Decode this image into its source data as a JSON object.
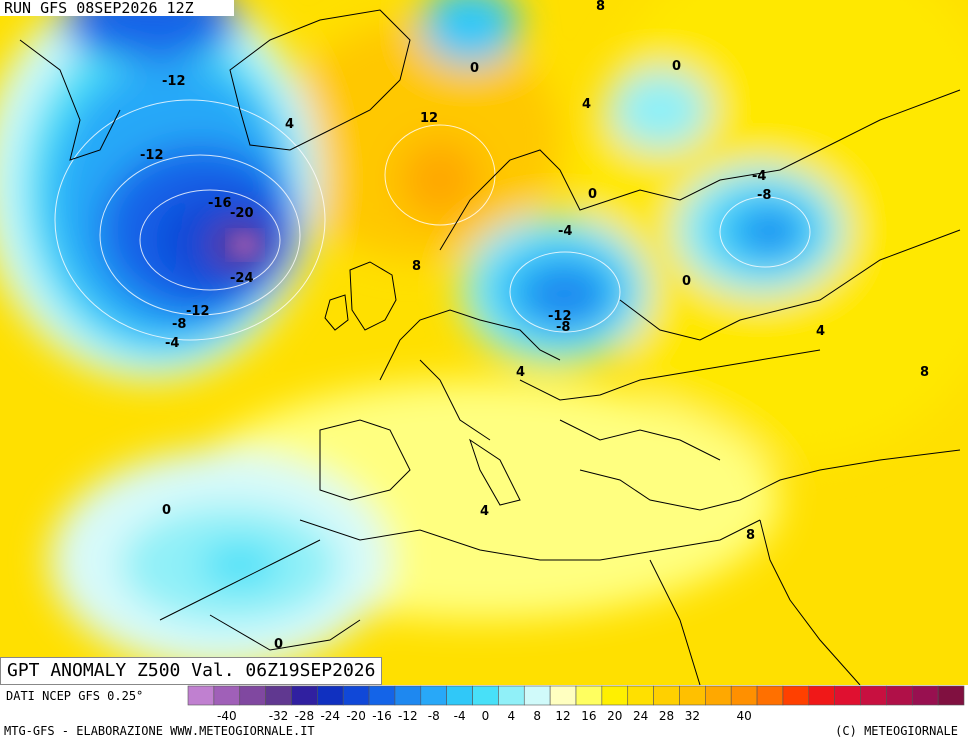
{
  "header": {
    "run": "RUN GFS 08SEP2026 12Z"
  },
  "title": "GPT ANOMALY Z500 Val. 06Z19SEP2026",
  "footer": {
    "source": "DATI NCEP GFS 0.25°",
    "credit_left": "MTG-GFS - ELABORAZIONE WWW.METEOGIORNALE.IT",
    "credit_right": "(C) METEOGIORNALE"
  },
  "legend": {
    "tick_labels": [
      "-40",
      "-32",
      "-28",
      "-24",
      "-20",
      "-16",
      "-12",
      "-8",
      "-4",
      "0",
      "4",
      "8",
      "12",
      "16",
      "20",
      "24",
      "28",
      "32",
      "40"
    ],
    "colors": [
      "#c080d0",
      "#a060b8",
      "#8048a0",
      "#603890",
      "#3020a0",
      "#1030c0",
      "#1048d8",
      "#1464e8",
      "#1e88f0",
      "#28a8f8",
      "#30c8f8",
      "#48e0f8",
      "#90f0f8",
      "#d0fafa",
      "#ffffc0",
      "#ffff60",
      "#fff000",
      "#ffe000",
      "#ffd000",
      "#ffc000",
      "#ffa800",
      "#ff9000",
      "#ff7000",
      "#ff4000",
      "#f01818",
      "#e01030",
      "#c81040",
      "#b01048",
      "#981050",
      "#801040"
    ]
  },
  "contour_labels": [
    "8",
    "0",
    "0",
    "4",
    "4",
    "12",
    "-12",
    "-12",
    "-16",
    "-20",
    "-24",
    "-12",
    "-8",
    "-4",
    "8",
    "0",
    "-4",
    "-12",
    "-8",
    "4",
    "-4",
    "-8",
    "0",
    "4",
    "8",
    "0",
    "4",
    "8",
    "0"
  ]
}
